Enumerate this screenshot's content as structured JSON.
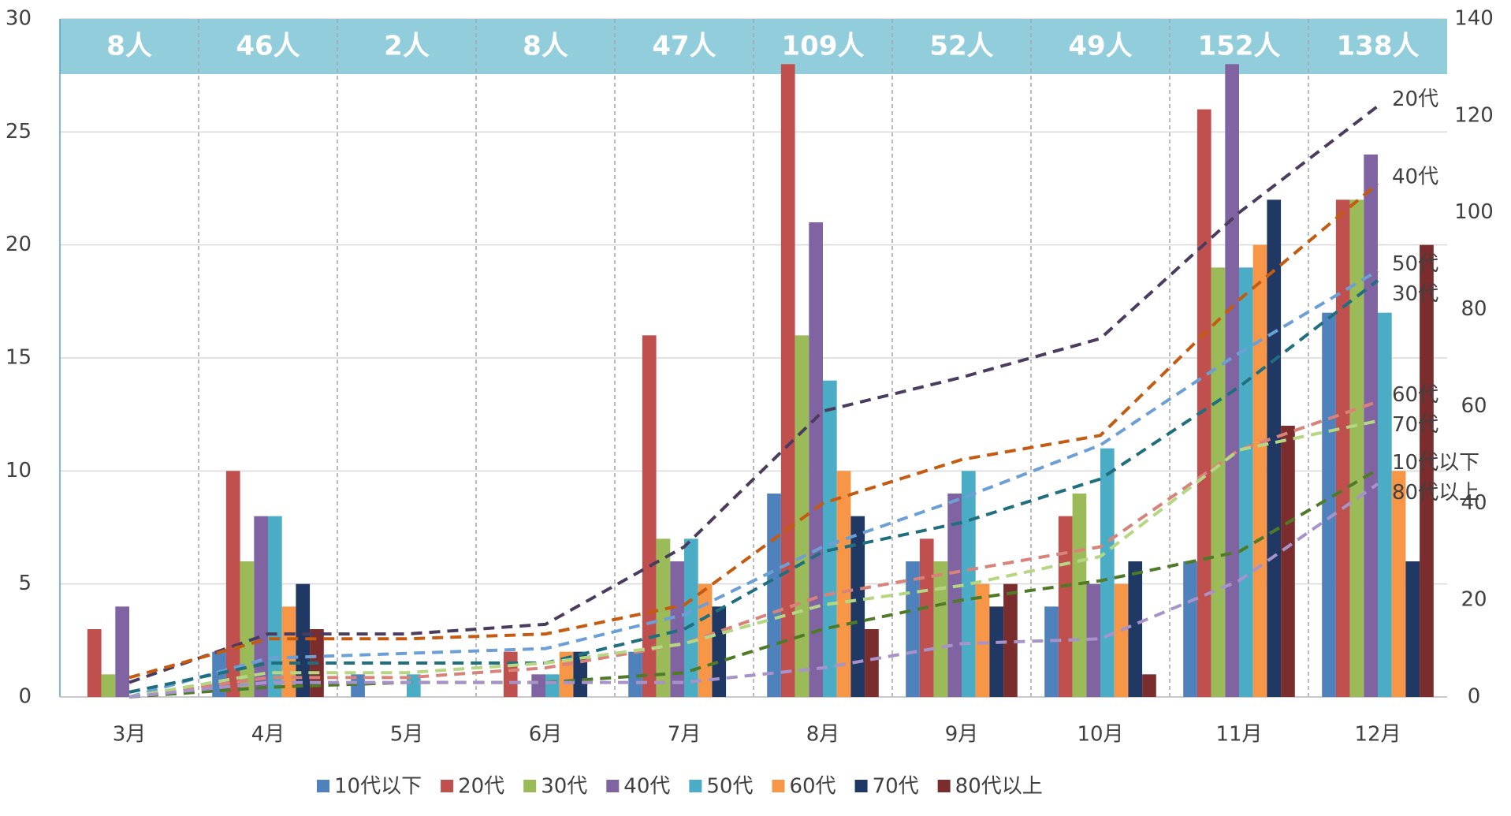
{
  "chart_data": {
    "type": "bar",
    "categories": [
      "3月",
      "4月",
      "5月",
      "6月",
      "7月",
      "8月",
      "9月",
      "10月",
      "11月",
      "12月"
    ],
    "total_labels": [
      "8人",
      "46人",
      "2人",
      "8人",
      "47人",
      "109人",
      "52人",
      "49人",
      "152人",
      "138人"
    ],
    "ylim": [
      0,
      30
    ],
    "yticks": [
      0,
      5,
      10,
      15,
      20,
      25,
      30
    ],
    "y2lim": [
      0,
      140
    ],
    "y2ticks": [
      0,
      20,
      40,
      60,
      80,
      100,
      120,
      140
    ],
    "grid": true,
    "legend": "bottom",
    "series": [
      {
        "name": "10代以下",
        "color": "#4f81bd",
        "values": [
          0,
          2,
          1,
          0,
          2,
          9,
          6,
          4,
          6,
          17
        ]
      },
      {
        "name": "20代",
        "color": "#c0504d",
        "values": [
          3,
          10,
          0,
          2,
          16,
          28,
          7,
          8,
          26,
          22
        ]
      },
      {
        "name": "30代",
        "color": "#9bbb59",
        "values": [
          1,
          6,
          0,
          0,
          7,
          16,
          6,
          9,
          19,
          22
        ]
      },
      {
        "name": "40代",
        "color": "#8064a2",
        "values": [
          4,
          8,
          0,
          1,
          6,
          21,
          9,
          5,
          28,
          24
        ]
      },
      {
        "name": "50代",
        "color": "#4bacc6",
        "values": [
          0,
          8,
          1,
          1,
          7,
          14,
          10,
          11,
          19,
          17
        ]
      },
      {
        "name": "60代",
        "color": "#f79646",
        "values": [
          0,
          4,
          0,
          2,
          5,
          10,
          5,
          5,
          20,
          10
        ]
      },
      {
        "name": "70代",
        "color": "#1f3864",
        "values": [
          0,
          5,
          0,
          2,
          4,
          8,
          4,
          6,
          22,
          6
        ]
      },
      {
        "name": "80代以上",
        "color": "#7b2c2c",
        "values": [
          0,
          3,
          0,
          0,
          0,
          3,
          5,
          1,
          12,
          20
        ]
      },
      {
        "name": "20代",
        "type": "line",
        "axis": "y2",
        "color": "#4b3b5e",
        "values": [
          3,
          13,
          13,
          15,
          31,
          59,
          66,
          74,
          100,
          122
        ]
      },
      {
        "name": "40代",
        "type": "line",
        "axis": "y2",
        "color": "#c55a11",
        "values": [
          4,
          12,
          12,
          13,
          19,
          40,
          49,
          54,
          82,
          106
        ]
      },
      {
        "name": "50代",
        "type": "line",
        "axis": "y2",
        "color": "#6c9fd6",
        "values": [
          0,
          8,
          9,
          10,
          17,
          31,
          41,
          52,
          71,
          88
        ]
      },
      {
        "name": "30代",
        "type": "line",
        "axis": "y2",
        "color": "#1f6f7f",
        "values": [
          1,
          7,
          7,
          7,
          14,
          30,
          36,
          45,
          64,
          86
        ]
      },
      {
        "name": "60代",
        "type": "line",
        "axis": "y2",
        "color": "#d9827a",
        "values": [
          0,
          4,
          4,
          6,
          11,
          21,
          26,
          31,
          51,
          61
        ]
      },
      {
        "name": "70代",
        "type": "line",
        "axis": "y2",
        "color": "#b5d682",
        "values": [
          0,
          5,
          5,
          7,
          11,
          19,
          23,
          29,
          51,
          57
        ]
      },
      {
        "name": "10代以下",
        "type": "line",
        "axis": "y2",
        "color": "#4f7a28",
        "values": [
          0,
          2,
          3,
          3,
          5,
          14,
          20,
          24,
          30,
          47
        ]
      },
      {
        "name": "80代以上",
        "type": "line",
        "axis": "y2",
        "color": "#a793c9",
        "values": [
          0,
          3,
          3,
          3,
          3,
          6,
          11,
          12,
          24,
          44
        ]
      }
    ]
  }
}
